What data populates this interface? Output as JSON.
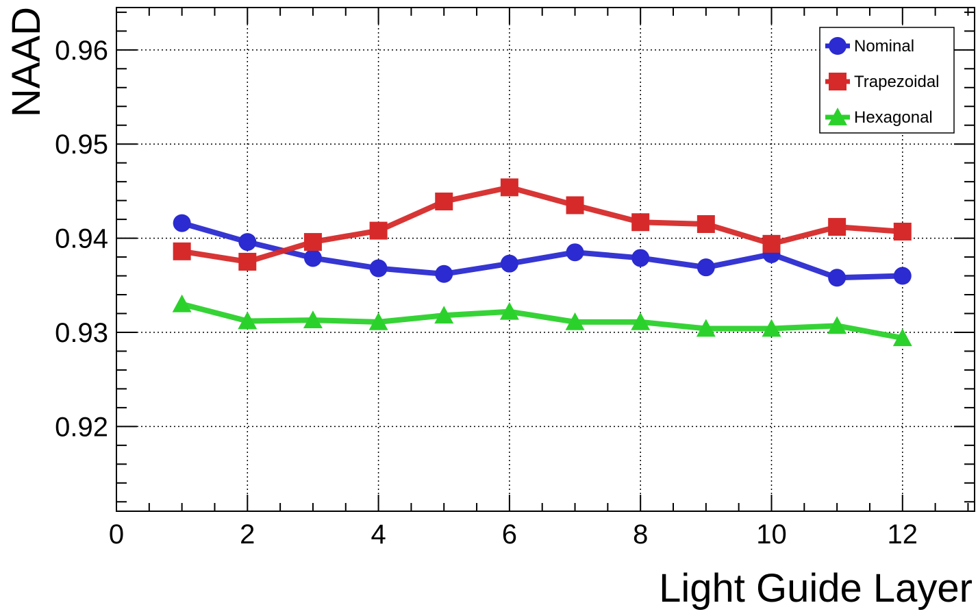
{
  "chart_data": {
    "type": "line",
    "xlabel": "Light Guide Layer",
    "ylabel": "NAAD",
    "xlim": [
      0,
      13.1
    ],
    "ylim": [
      0.911,
      0.9645
    ],
    "xticks": [
      0,
      2,
      4,
      6,
      8,
      10,
      12
    ],
    "yticks": [
      0.92,
      0.93,
      0.94,
      0.95,
      0.96
    ],
    "ytick_labels": [
      "0.92",
      "0.93",
      "0.94",
      "0.95",
      "0.96"
    ],
    "grid": true,
    "legend_position": "top-right",
    "x": [
      1,
      2,
      3,
      4,
      5,
      6,
      7,
      8,
      9,
      10,
      11,
      12
    ],
    "series": [
      {
        "name": "Nominal",
        "color": "#2b2bd1",
        "marker": "circle",
        "values": [
          0.9416,
          0.9396,
          0.9379,
          0.9368,
          0.9362,
          0.9373,
          0.9385,
          0.9379,
          0.9369,
          0.9383,
          0.9358,
          0.936
        ]
      },
      {
        "name": "Trapezoidal",
        "color": "#d62a2a",
        "marker": "square",
        "values": [
          0.9386,
          0.9375,
          0.9396,
          0.9408,
          0.9439,
          0.9454,
          0.9435,
          0.9417,
          0.9415,
          0.9394,
          0.9412,
          0.9407
        ]
      },
      {
        "name": "Hexagonal",
        "color": "#2bd12b",
        "marker": "triangle",
        "values": [
          0.933,
          0.9312,
          0.9313,
          0.9311,
          0.9318,
          0.9322,
          0.9311,
          0.9311,
          0.9304,
          0.9304,
          0.9307,
          0.9294
        ]
      }
    ]
  }
}
